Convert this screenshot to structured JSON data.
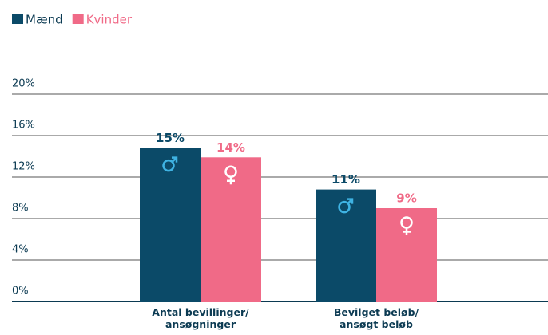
{
  "chart_data": {
    "type": "bar",
    "categories": [
      "Antal bevillinger/ ansøgninger",
      "Bevilget beløb/ ansøgt beløb"
    ],
    "series": [
      {
        "name": "Mænd",
        "color": "#0b4a68",
        "values": [
          14.8,
          10.8
        ],
        "value_labels": [
          "15%",
          "11%"
        ]
      },
      {
        "name": "Kvinder",
        "color": "#f06a87",
        "values": [
          13.9,
          9.0
        ],
        "value_labels": [
          "14%",
          "9%"
        ]
      }
    ],
    "ylim": [
      0,
      20
    ],
    "yticks": [
      {
        "value": 0,
        "label": "0%"
      },
      {
        "value": 4,
        "label": "4%"
      },
      {
        "value": 8,
        "label": "8%"
      },
      {
        "value": 12,
        "label": "12%"
      },
      {
        "value": 16,
        "label": "16%"
      },
      {
        "value": 20,
        "label": "20%"
      }
    ],
    "grid": true
  }
}
